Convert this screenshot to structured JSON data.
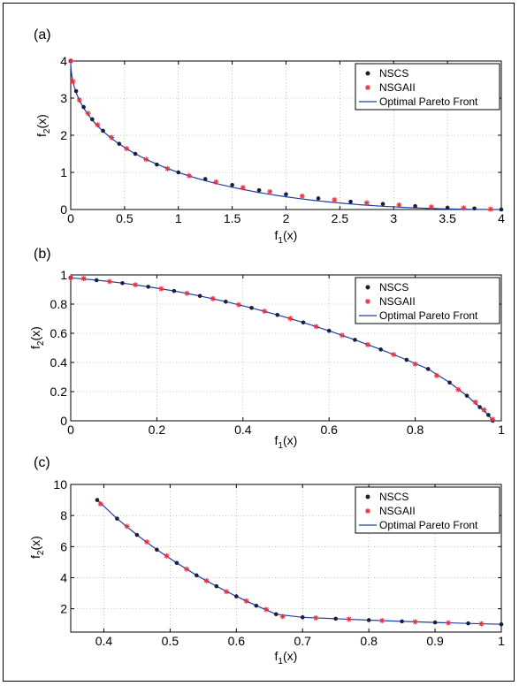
{
  "colors": {
    "nscs": "#1a1f3a",
    "nsgaii": "#e8313f",
    "front": "#1f3fa6"
  },
  "legend": {
    "nscs": "NSCS",
    "nsgaii": "NSGAII",
    "front": "Optimal Pareto Front"
  },
  "chart_data": [
    {
      "panel_label": "(a)",
      "type": "scatter",
      "xlabel": "f1(x)",
      "ylabel": "f2(x)",
      "xlim": [
        0,
        4
      ],
      "ylim": [
        0,
        4
      ],
      "xticks": [
        0,
        0.5,
        1,
        1.5,
        2,
        2.5,
        3,
        3.5,
        4
      ],
      "xtick_labels": [
        "0",
        "0.5",
        "1",
        "1.5",
        "2",
        "2.5",
        "3",
        "3.5",
        "4"
      ],
      "yticks": [
        0,
        1,
        2,
        3,
        4
      ],
      "ytick_labels": [
        "0",
        "1",
        "2",
        "3",
        "4"
      ],
      "grid": true,
      "legend_position": "top-right",
      "series": [
        {
          "name": "NSCS",
          "marker": "dot",
          "x": [
            0,
            0.05,
            0.12,
            0.2,
            0.3,
            0.45,
            0.6,
            0.8,
            1.0,
            1.25,
            1.5,
            1.75,
            2.0,
            2.3,
            2.6,
            2.9,
            3.2,
            3.5,
            3.75,
            4.0
          ],
          "y": [
            4,
            3.19,
            2.76,
            2.43,
            2.12,
            1.77,
            1.5,
            1.21,
            1.0,
            0.82,
            0.66,
            0.52,
            0.41,
            0.3,
            0.21,
            0.15,
            0.09,
            0.05,
            0.03,
            0
          ]
        },
        {
          "name": "NSGAII",
          "marker": "star",
          "x": [
            0,
            0.02,
            0.08,
            0.16,
            0.25,
            0.38,
            0.52,
            0.7,
            0.9,
            1.1,
            1.35,
            1.6,
            1.85,
            2.15,
            2.45,
            2.75,
            3.05,
            3.35,
            3.65,
            3.9
          ],
          "y": [
            4,
            3.45,
            2.95,
            2.59,
            2.28,
            1.94,
            1.64,
            1.35,
            1.1,
            0.91,
            0.74,
            0.59,
            0.48,
            0.36,
            0.26,
            0.18,
            0.12,
            0.07,
            0.04,
            0.01
          ]
        }
      ],
      "front": "4 - 4*sqrt(f1) + f1"
    },
    {
      "panel_label": "(b)",
      "type": "scatter",
      "xlabel": "f1(x)",
      "ylabel": "f2(x)",
      "xlim": [
        0,
        1
      ],
      "ylim": [
        0,
        1
      ],
      "xticks": [
        0,
        0.2,
        0.4,
        0.6,
        0.8,
        1
      ],
      "xtick_labels": [
        "0",
        "0.2",
        "0.4",
        "0.6",
        "0.8",
        "1"
      ],
      "yticks": [
        0,
        0.2,
        0.4,
        0.6,
        0.8,
        1
      ],
      "ytick_labels": [
        "0",
        "0.2",
        "0.4",
        "0.6",
        "0.8",
        "1"
      ],
      "grid": true,
      "legend_position": "top-right",
      "series": [
        {
          "name": "NSCS",
          "marker": "dot",
          "x": [
            0,
            0.06,
            0.12,
            0.18,
            0.24,
            0.3,
            0.36,
            0.42,
            0.48,
            0.54,
            0.6,
            0.66,
            0.72,
            0.78,
            0.83,
            0.88,
            0.92,
            0.95,
            0.97,
            0.98
          ],
          "y": [
            0.98,
            0.964,
            0.944,
            0.919,
            0.89,
            0.856,
            0.817,
            0.774,
            0.726,
            0.674,
            0.617,
            0.555,
            0.489,
            0.418,
            0.355,
            0.262,
            0.172,
            0.094,
            0.04,
            0
          ]
        },
        {
          "name": "NSGAII",
          "marker": "star",
          "x": [
            0,
            0.03,
            0.09,
            0.15,
            0.21,
            0.27,
            0.33,
            0.39,
            0.45,
            0.51,
            0.57,
            0.63,
            0.69,
            0.75,
            0.8,
            0.85,
            0.9,
            0.94,
            0.96,
            0.98
          ],
          "y": [
            0.98,
            0.975,
            0.955,
            0.932,
            0.905,
            0.874,
            0.837,
            0.796,
            0.751,
            0.701,
            0.646,
            0.586,
            0.522,
            0.454,
            0.389,
            0.31,
            0.214,
            0.128,
            0.075,
            0.01
          ]
        }
      ],
      "front": "concave"
    },
    {
      "panel_label": "(c)",
      "type": "scatter",
      "xlabel": "f1(x)",
      "ylabel": "f2(x)",
      "xlim": [
        0.35,
        1
      ],
      "ylim": [
        0.5,
        10
      ],
      "xticks": [
        0.4,
        0.5,
        0.6,
        0.7,
        0.8,
        0.9,
        1
      ],
      "xtick_labels": [
        "0.4",
        "0.5",
        "0.6",
        "0.7",
        "0.8",
        "0.9",
        "1"
      ],
      "yticks": [
        2,
        4,
        6,
        8,
        10
      ],
      "ytick_labels": [
        "2",
        "4",
        "6",
        "8",
        "10"
      ],
      "grid": true,
      "legend_position": "top-right",
      "series": [
        {
          "name": "NSCS",
          "marker": "dot",
          "x": [
            0.39,
            0.42,
            0.45,
            0.48,
            0.51,
            0.54,
            0.57,
            0.6,
            0.63,
            0.66,
            0.7,
            0.75,
            0.8,
            0.85,
            0.9,
            0.95,
            1.0
          ],
          "y": [
            9.0,
            7.8,
            6.75,
            5.8,
            4.95,
            4.15,
            3.45,
            2.8,
            2.2,
            1.65,
            1.45,
            1.36,
            1.27,
            1.19,
            1.12,
            1.06,
            1.0
          ]
        },
        {
          "name": "NSGAII",
          "marker": "star",
          "x": [
            0.395,
            0.435,
            0.465,
            0.495,
            0.525,
            0.555,
            0.585,
            0.615,
            0.645,
            0.67,
            0.72,
            0.77,
            0.82,
            0.87,
            0.92,
            0.97
          ],
          "y": [
            8.75,
            7.3,
            6.3,
            5.4,
            4.55,
            3.8,
            3.1,
            2.5,
            1.95,
            1.5,
            1.41,
            1.33,
            1.24,
            1.16,
            1.09,
            1.03
          ]
        }
      ],
      "front": "piecewise"
    }
  ]
}
